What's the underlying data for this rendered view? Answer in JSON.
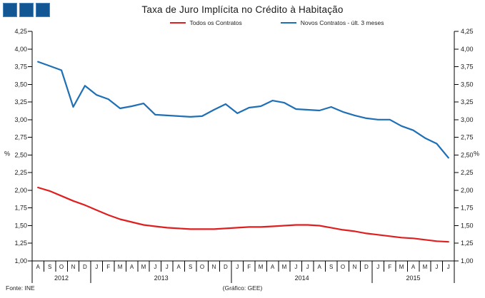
{
  "logo": {
    "square_count": 3,
    "color": "#125693"
  },
  "title": "Taxa de Juro Implícita no Crédito à Habitação",
  "footer": {
    "source": "Fonte: INE",
    "credit": "(Gráfico: GEE)"
  },
  "chart_data": {
    "type": "line",
    "title": "Taxa de Juro Implícita no Crédito à Habitação",
    "legend_position": "top",
    "grid": false,
    "y_axis": {
      "min": 1.0,
      "max": 4.25,
      "step": 0.25,
      "unit": "%",
      "unit_y_value": 2.5,
      "tick_labels": [
        "4,25",
        "4,00",
        "3,75",
        "3,50",
        "3,25",
        "3,00",
        "2,75",
        "2,50",
        "2,25",
        "2,00",
        "1,75",
        "1,50",
        "1,25",
        "1,00"
      ]
    },
    "x_axis": {
      "month_labels": [
        "A",
        "S",
        "O",
        "N",
        "D",
        "J",
        "F",
        "M",
        "A",
        "M",
        "J",
        "J",
        "A",
        "S",
        "O",
        "N",
        "D",
        "J",
        "F",
        "M",
        "A",
        "M",
        "J",
        "J",
        "A",
        "S",
        "O",
        "N",
        "D",
        "J",
        "F",
        "M",
        "A",
        "M",
        "J",
        "J"
      ],
      "year_groups": [
        {
          "label": "2012",
          "months": 5
        },
        {
          "label": "2013",
          "months": 12
        },
        {
          "label": "2014",
          "months": 12
        },
        {
          "label": "2015",
          "months": 7
        }
      ]
    },
    "series": [
      {
        "name": "Todos os Contratos",
        "color": "#df1f1f",
        "values": [
          2.04,
          1.99,
          1.92,
          1.85,
          1.79,
          1.72,
          1.65,
          1.59,
          1.55,
          1.51,
          1.49,
          1.47,
          1.46,
          1.45,
          1.45,
          1.45,
          1.46,
          1.47,
          1.48,
          1.48,
          1.49,
          1.5,
          1.51,
          1.51,
          1.5,
          1.47,
          1.44,
          1.42,
          1.39,
          1.37,
          1.35,
          1.33,
          1.32,
          1.3,
          1.28,
          1.27
        ]
      },
      {
        "name": "Novos Contratos - últ. 3 meses",
        "color": "#1f6fb5",
        "values": [
          3.82,
          3.76,
          3.7,
          3.18,
          3.48,
          3.35,
          3.29,
          3.16,
          3.19,
          3.23,
          3.07,
          3.06,
          3.05,
          3.04,
          3.05,
          3.14,
          3.22,
          3.09,
          3.17,
          3.19,
          3.27,
          3.24,
          3.15,
          3.14,
          3.13,
          3.18,
          3.11,
          3.06,
          3.02,
          3.0,
          3.0,
          2.91,
          2.85,
          2.74,
          2.66,
          2.46
        ]
      }
    ]
  }
}
